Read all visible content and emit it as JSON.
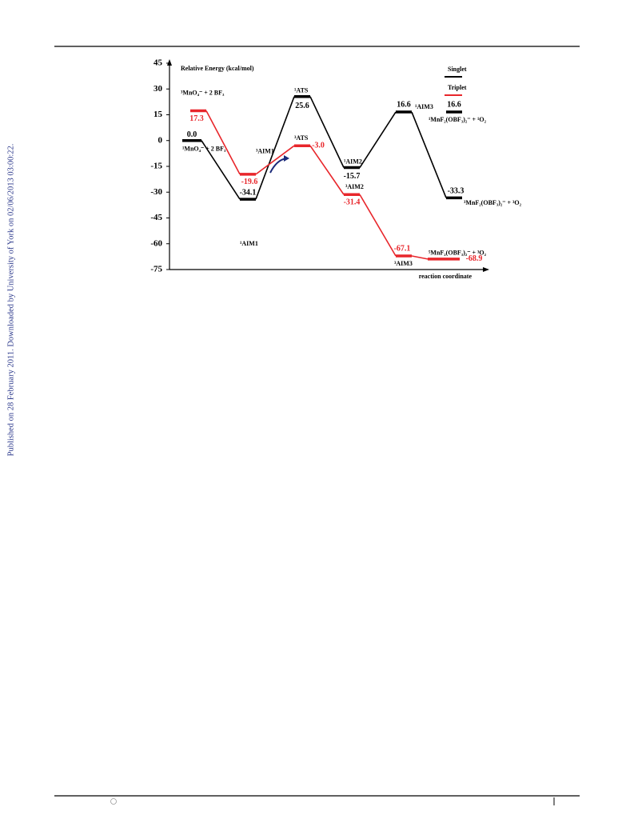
{
  "side_note": "Published on 28 February 2011. Downloaded by University of York on 02/06/2013 03:00:22.",
  "chart_data": {
    "type": "energy-profile",
    "ylabel": "Relative Energy (kcal/mol)",
    "xlabel": "reaction coordinate",
    "ylim": [
      -75,
      45
    ],
    "yticks": [
      -75,
      -60,
      -45,
      -30,
      -15,
      0,
      15,
      30,
      45
    ],
    "series": [
      {
        "name": "Singlet",
        "color": "#000000",
        "values": [
          0,
          -34.1,
          25.6,
          -15.7,
          16.6,
          -33.3
        ],
        "value_labels": [
          "0.0",
          "-34.1",
          "25.6",
          "-15.7",
          "16.6",
          "-33.3"
        ],
        "labels": [
          "¹MnO₄⁻ + 2 BF₃",
          "¹AIM1",
          "¹ATS",
          "¹AIM2",
          "¹AIM3",
          "³MnF₂(OBF₃)₂⁻ + ³O₂"
        ]
      },
      {
        "name": "Triplet",
        "color": "#e8262b",
        "values": [
          17.3,
          -19.6,
          -3.0,
          -31.4,
          -67.1,
          -68.9
        ],
        "value_labels": [
          "17.3",
          "-19.6",
          "-3.0",
          "-31.4",
          "-67.1",
          "-68.9"
        ],
        "labels": [
          "³MnO₄⁻ + 2 BF₃",
          "³AIM1",
          "³ATS",
          "³AIM2",
          "³AIM3",
          "⁵MnF₂(OBF₃)₂⁻ + ³O₂"
        ]
      }
    ],
    "extra_levels": [
      {
        "value": 16.6,
        "value_label": "16.6",
        "label": "¹MnF₂(OBF₃)₂⁻ + ¹O₂"
      }
    ]
  }
}
